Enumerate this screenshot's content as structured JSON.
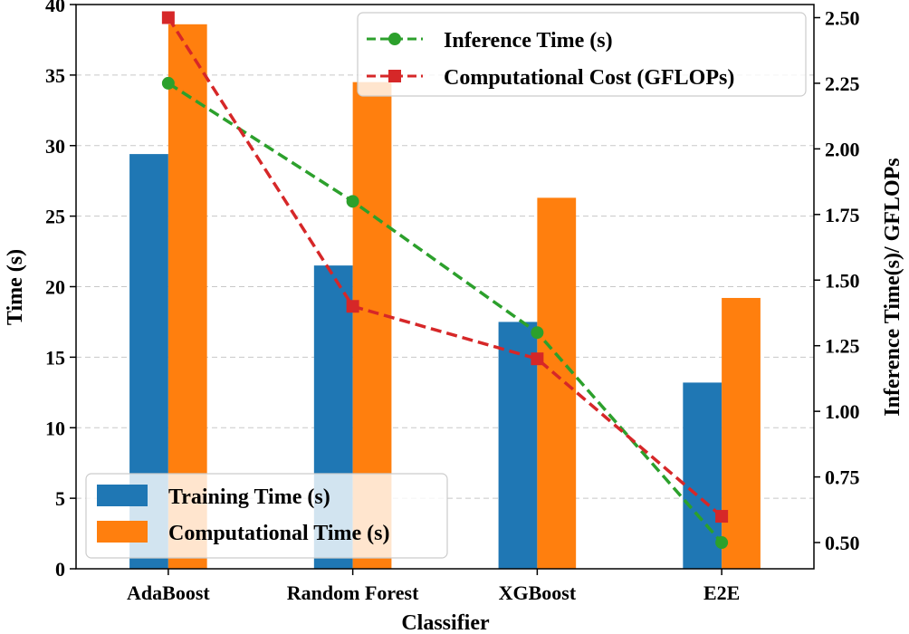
{
  "chart_data": {
    "type": "bar+line",
    "xlabel": "Classifier",
    "ylabel_left": "Time (s)",
    "ylabel_right": "Inference Time(s)/ GFLOPs",
    "ylim_left": [
      0,
      40
    ],
    "ylim_right": [
      0.4,
      2.55
    ],
    "left_ticks": [
      "0",
      "5",
      "10",
      "15",
      "20",
      "25",
      "30",
      "35",
      "40"
    ],
    "right_ticks": [
      "0.50",
      "0.75",
      "1.00",
      "1.25",
      "1.50",
      "1.75",
      "2.00",
      "2.25",
      "2.50"
    ],
    "grid": "horizontal-dashed",
    "categories": [
      "AdaBoost",
      "Random Forest",
      "XGBoost",
      "E2E"
    ],
    "bar_series": [
      {
        "name": "Training Time (s)",
        "color": "#1f77b4",
        "values": [
          29.4,
          21.5,
          17.5,
          13.2
        ]
      },
      {
        "name": "Computational Time (s)",
        "color": "#ff7f0e",
        "values": [
          38.6,
          34.5,
          26.3,
          19.2
        ]
      }
    ],
    "line_series": [
      {
        "name": "Inference Time (s)",
        "color": "#2ca02c",
        "marker": "circle",
        "values": [
          2.25,
          1.8,
          1.3,
          0.5
        ]
      },
      {
        "name": "Computational Cost (GFLOPs)",
        "color": "#d62728",
        "marker": "square",
        "values": [
          2.5,
          1.4,
          1.2,
          0.6
        ]
      }
    ],
    "legend_bars_position": "bottom-left",
    "legend_lines_position": "top-right"
  }
}
